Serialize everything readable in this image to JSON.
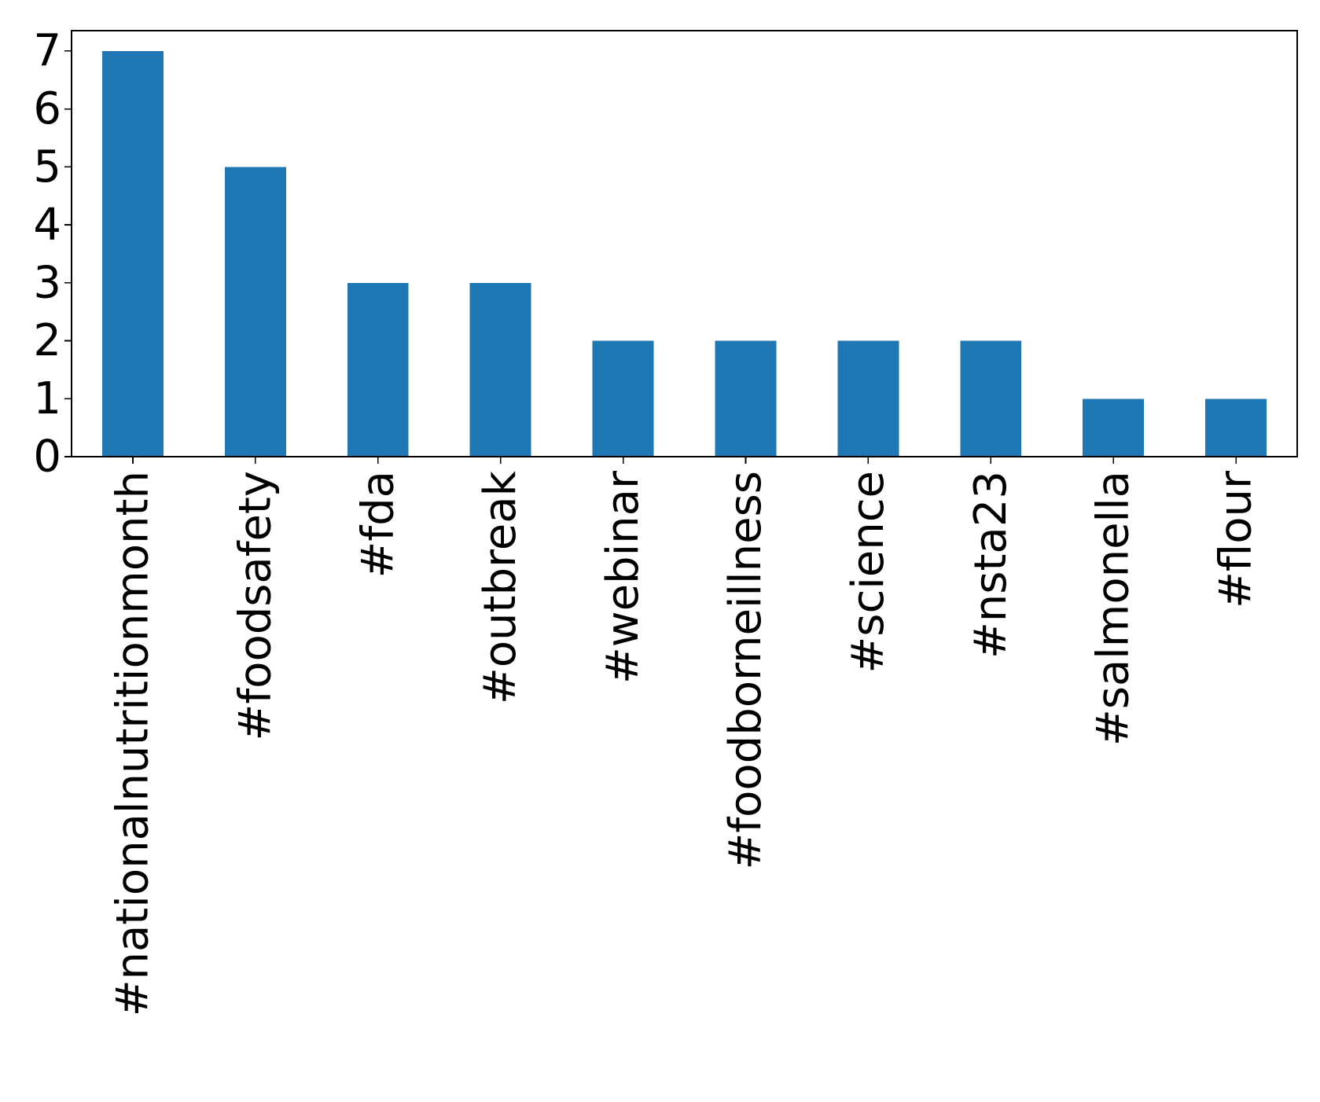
{
  "chart_data": {
    "type": "bar",
    "title": "",
    "xlabel": "",
    "ylabel": "",
    "categories": [
      "#nationalnutritionmonth",
      "#foodsafety",
      "#fda",
      "#outbreak",
      "#webinar",
      "#foodborneillness",
      "#science",
      "#nsta23",
      "#salmonella",
      "#flour"
    ],
    "values": [
      7,
      5,
      3,
      3,
      2,
      2,
      2,
      2,
      1,
      1
    ],
    "ylim": [
      0,
      7.35
    ],
    "yticks": [
      0,
      1,
      2,
      3,
      4,
      5,
      6,
      7
    ],
    "ytick_labels": [
      "0",
      "1",
      "2",
      "3",
      "4",
      "5",
      "6",
      "7"
    ],
    "xtick_rotation": "vertical",
    "grid": false,
    "legend": "none",
    "colors": {
      "bar": "#1f77b4",
      "axis": "#000000",
      "background": "#ffffff"
    }
  }
}
